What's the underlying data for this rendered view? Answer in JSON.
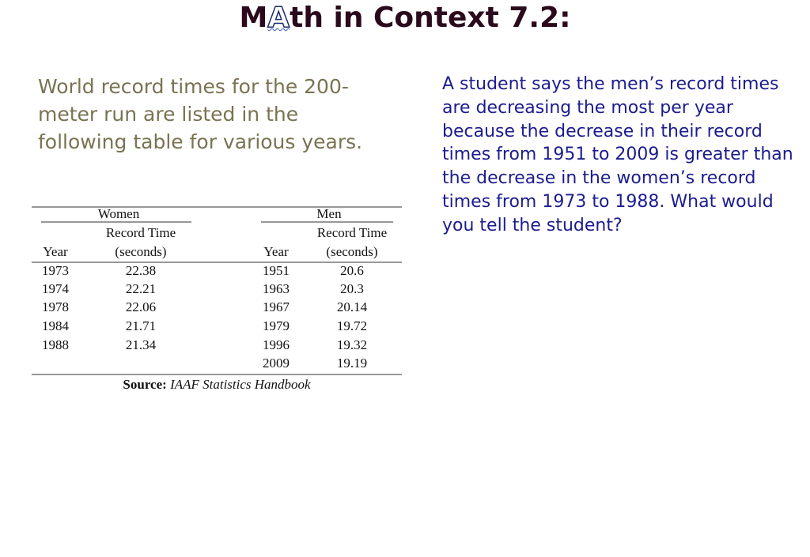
{
  "header": {
    "title_start": "M",
    "title_logo": "A",
    "title_end": "th in Context 7.2:"
  },
  "intro": "World record times for the 200-meter run are listed in the following table for various years.",
  "question": "A student says the men’s record times are decreasing the most per year because the decrease in their record times from 1951 to 2009 is greater than the decrease in the women’s record times from 1973 to 1988.  What would you tell the student?",
  "table": {
    "groups": [
      {
        "name": "Women",
        "columns": [
          "Year",
          "Record Time",
          "(seconds)"
        ],
        "rows": [
          [
            "1973",
            "22.38"
          ],
          [
            "1974",
            "22.21"
          ],
          [
            "1978",
            "22.06"
          ],
          [
            "1984",
            "21.71"
          ],
          [
            "1988",
            "21.34"
          ]
        ]
      },
      {
        "name": "Men",
        "columns": [
          "Year",
          "Record Time",
          "(seconds)"
        ],
        "rows": [
          [
            "1951",
            "20.6"
          ],
          [
            "1963",
            "20.3"
          ],
          [
            "1967",
            "20.14"
          ],
          [
            "1979",
            "19.72"
          ],
          [
            "1996",
            "19.32"
          ],
          [
            "2009",
            "19.19"
          ]
        ]
      }
    ],
    "source_label": "Source:",
    "source": "IAAF Statistics Handbook"
  }
}
